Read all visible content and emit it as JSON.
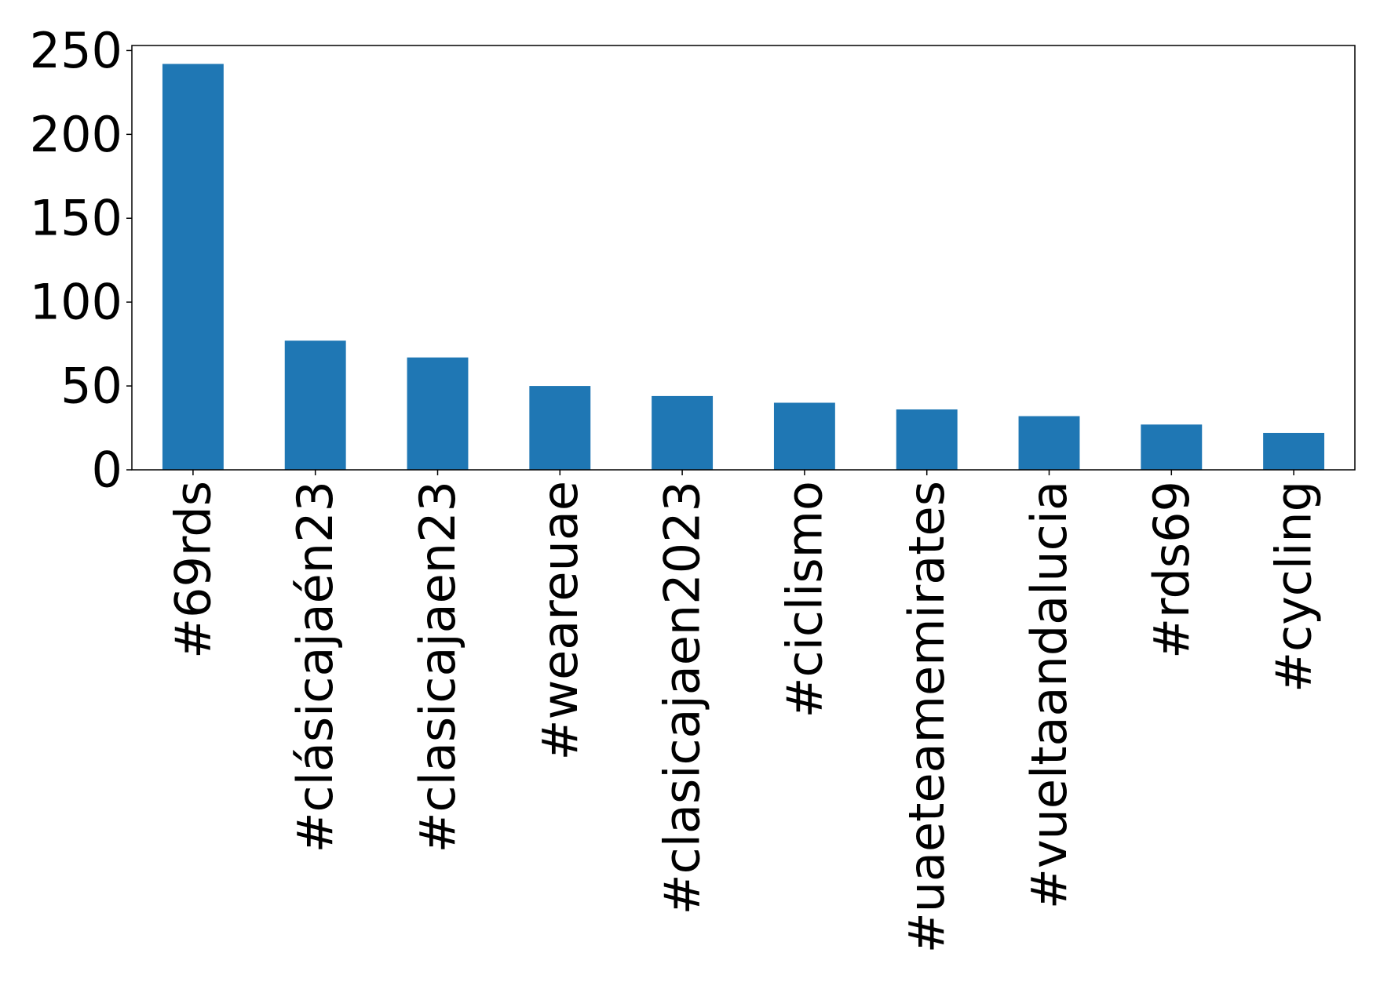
{
  "chart_data": {
    "type": "bar",
    "categories": [
      "#69rds",
      "#clásicajaén23",
      "#clasicajaen23",
      "#weareuae",
      "#clasicajaen2023",
      "#ciclismo",
      "#uaeteamemirates",
      "#vueltaandalucia",
      "#rds69",
      "#cycling"
    ],
    "values": [
      242,
      77,
      67,
      50,
      44,
      40,
      36,
      32,
      27,
      22
    ],
    "title": "",
    "xlabel": "",
    "ylabel": "",
    "ylim": [
      0,
      253
    ],
    "yticks": [
      0,
      50,
      100,
      150,
      200,
      250
    ],
    "grid": false,
    "legend": "none",
    "colors": {
      "bar": "#1f77b4",
      "axis": "#000000",
      "background": "#ffffff"
    }
  }
}
